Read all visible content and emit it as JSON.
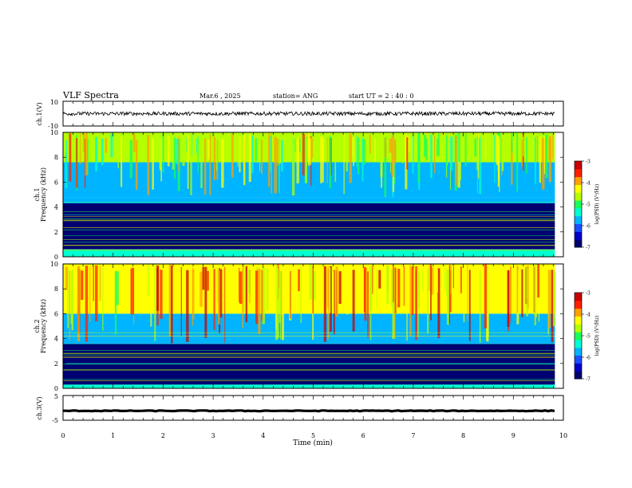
{
  "header": {
    "title": "VLF Spectra",
    "date": "Mar.6  , 2025",
    "station": "station= ANG",
    "start_time": "start  UT  =   2 : 40 : 0"
  },
  "colors": {
    "spectrogram_scale": [
      "#000070",
      "#0000c8",
      "#1850ff",
      "#00b4ff",
      "#00ffd2",
      "#18ff5a",
      "#b4ff00",
      "#ffff00",
      "#ffa000",
      "#ff2000",
      "#c80000"
    ],
    "trace": "#000000"
  },
  "colorbar": {
    "label": "log(PSD) (V²/Hz)",
    "ticks": [
      "-3",
      "-4",
      "-5",
      "-6",
      "-7"
    ],
    "range": [
      -7,
      -3
    ]
  },
  "chart_data": [
    {
      "type": "line",
      "panel": "ch1-waveform",
      "ylabel": "ch.1(V)",
      "ylim": [
        -10,
        10
      ],
      "y_tick_labels": [
        "10",
        "-10"
      ],
      "description_values": {
        "baseline": 0,
        "noise_amplitude": 1.5
      }
    },
    {
      "type": "heatmap",
      "panel": "ch1-spectrogram",
      "ylabel_line1": "ch.1",
      "ylabel_line2": "Frequency (kHz)",
      "ylim": [
        0,
        10
      ],
      "y_tick_labels": [
        "0",
        "2",
        "4",
        "6",
        "8",
        "10"
      ],
      "bands": [
        {
          "from_khz": 0,
          "to_khz": 0.6,
          "level": -5.4
        },
        {
          "from_khz": 0.6,
          "to_khz": 4.3,
          "level": -6.7
        },
        {
          "from_khz": 4.3,
          "to_khz": 4.8,
          "level": -5.6
        },
        {
          "from_khz": 4.8,
          "to_khz": 7.6,
          "level": -5.9
        },
        {
          "from_khz": 7.6,
          "to_khz": 10,
          "level": -4.8
        }
      ]
    },
    {
      "type": "heatmap",
      "panel": "ch2-spectrogram",
      "ylabel_line1": "ch.2",
      "ylabel_line2": "Frequency (kHz)",
      "ylim": [
        0,
        10
      ],
      "y_tick_labels": [
        "0",
        "2",
        "4",
        "6",
        "8",
        "10"
      ],
      "bands": [
        {
          "from_khz": 0,
          "to_khz": 0.3,
          "level": -5.2
        },
        {
          "from_khz": 0.3,
          "to_khz": 3.6,
          "level": -6.7
        },
        {
          "from_khz": 3.6,
          "to_khz": 6.0,
          "level": -5.7
        },
        {
          "from_khz": 6.0,
          "to_khz": 10,
          "level": -4.2
        }
      ]
    },
    {
      "type": "line",
      "panel": "ch3-waveform",
      "ylabel": "ch.3(V)",
      "ylim": [
        -5,
        5
      ],
      "y_tick_labels": [
        "5",
        "-5"
      ],
      "description_values": {
        "baseline": -1.2,
        "noise_amplitude": 0.15
      }
    }
  ],
  "x_axis": {
    "label": "Time  (min)",
    "range": [
      0,
      10
    ],
    "tick_labels": [
      "0",
      "1",
      "2",
      "3",
      "4",
      "5",
      "6",
      "7",
      "8",
      "9",
      "10"
    ],
    "data_end_min": 9.83
  }
}
